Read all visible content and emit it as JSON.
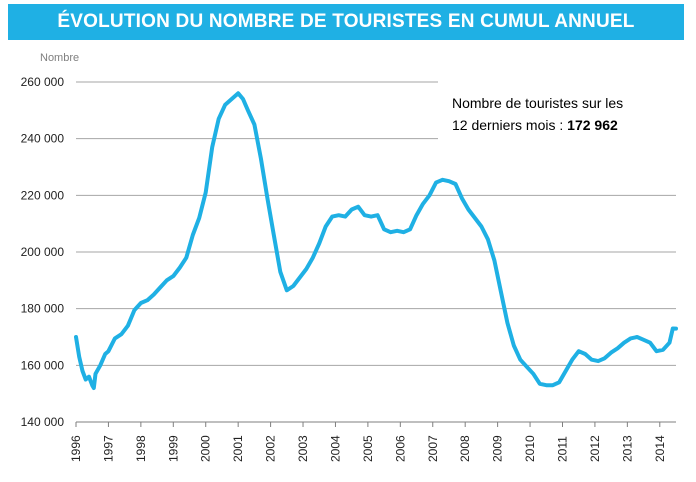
{
  "chart_data": {
    "type": "line",
    "title": "ÉVOLUTION DU NOMBRE DE TOURISTES EN CUMUL ANNUEL",
    "ylabel": "Nombre",
    "xlabel": "",
    "ylim": [
      140000,
      260000
    ],
    "xlim": [
      1996,
      2014.5
    ],
    "y_ticks": [
      "140 000",
      "160 000",
      "180 000",
      "200 000",
      "220 000",
      "240 000",
      "260 000"
    ],
    "y_tick_values": [
      140000,
      160000,
      180000,
      200000,
      220000,
      240000,
      260000
    ],
    "x_ticks": [
      "1996",
      "1997",
      "1998",
      "1999",
      "2000",
      "2001",
      "2002",
      "2003",
      "2004",
      "2005",
      "2006",
      "2007",
      "2008",
      "2009",
      "2010",
      "2011",
      "2012",
      "2013",
      "2014"
    ],
    "grid": "horizontal",
    "line_color": "#1fb0e4",
    "annotation": {
      "text": "Nombre de touristes sur les",
      "text2": "12 derniers mois : ",
      "value": "172 962"
    },
    "series": [
      {
        "x": [
          1996.0,
          1996.1,
          1996.2,
          1996.3,
          1996.4,
          1996.5,
          1996.55,
          1996.6,
          1996.75,
          1996.9,
          1997.0,
          1997.2,
          1997.4,
          1997.6,
          1997.8,
          1998.0,
          1998.2,
          1998.4,
          1998.6,
          1998.8,
          1999.0,
          1999.2,
          1999.4,
          1999.6,
          1999.8,
          2000.0,
          2000.2,
          2000.4,
          2000.6,
          2000.8,
          2001.0,
          2001.15,
          2001.3,
          2001.5,
          2001.7,
          2001.9,
          2002.1,
          2002.3,
          2002.5,
          2002.7,
          2002.9,
          2003.1,
          2003.3,
          2003.5,
          2003.7,
          2003.9,
          2004.1,
          2004.3,
          2004.5,
          2004.7,
          2004.9,
          2005.1,
          2005.3,
          2005.5,
          2005.7,
          2005.9,
          2006.1,
          2006.3,
          2006.5,
          2006.7,
          2006.9,
          2007.1,
          2007.3,
          2007.5,
          2007.7,
          2007.9,
          2008.1,
          2008.3,
          2008.5,
          2008.7,
          2008.9,
          2009.1,
          2009.3,
          2009.5,
          2009.7,
          2009.9,
          2010.1,
          2010.3,
          2010.5,
          2010.7,
          2010.9,
          2011.1,
          2011.3,
          2011.5,
          2011.7,
          2011.9,
          2012.1,
          2012.3,
          2012.5,
          2012.7,
          2012.9,
          2013.1,
          2013.3,
          2013.5,
          2013.7,
          2013.9,
          2014.1,
          2014.3,
          2014.4,
          2014.5
        ],
        "y": [
          170000,
          163000,
          158000,
          155000,
          156000,
          153000,
          152000,
          157000,
          160000,
          164000,
          165000,
          169500,
          171000,
          174000,
          179500,
          182000,
          183000,
          185000,
          187500,
          190000,
          191500,
          194500,
          198000,
          206000,
          212000,
          221000,
          237000,
          247000,
          252000,
          254000,
          256000,
          254000,
          250000,
          245000,
          233000,
          219000,
          206000,
          193000,
          186500,
          188000,
          191000,
          194000,
          198000,
          203000,
          209000,
          212500,
          213000,
          212500,
          215000,
          216000,
          213000,
          212500,
          213000,
          208000,
          207000,
          207500,
          207000,
          208000,
          213000,
          217000,
          220000,
          224500,
          225500,
          225000,
          224000,
          219000,
          215000,
          212000,
          209000,
          204500,
          197000,
          186000,
          175000,
          167000,
          162000,
          159500,
          157000,
          153500,
          153000,
          153000,
          154000,
          158000,
          162000,
          165000,
          164000,
          162000,
          161500,
          162500,
          164500,
          166000,
          168000,
          169500,
          170000,
          169000,
          168000,
          165000,
          165500,
          168000,
          173000,
          172962
        ]
      }
    ]
  }
}
